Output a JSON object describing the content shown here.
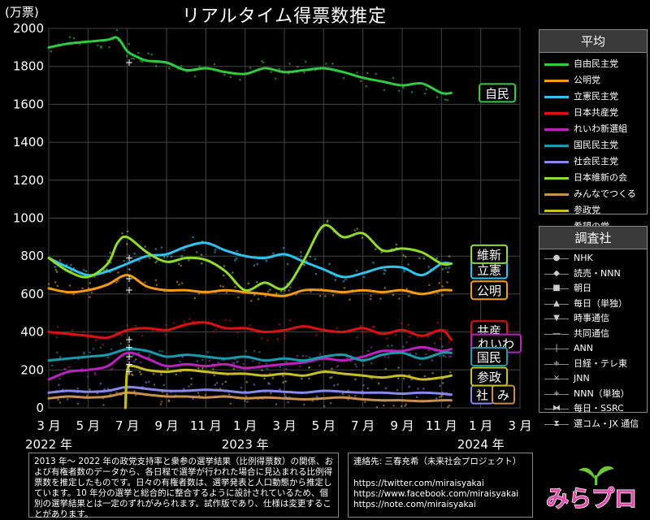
{
  "title": "リアルタイム得票数推定",
  "chart_data": {
    "type": "line",
    "title": "リアルタイム得票数推定",
    "ylabel": "(万票)",
    "ylim": [
      0,
      2000
    ],
    "yticks": [
      0,
      200,
      400,
      600,
      800,
      1000,
      1200,
      1400,
      1600,
      1800,
      2000
    ],
    "xlim": [
      0,
      24
    ],
    "x_unit": "months since 2022-03",
    "xticks": [
      {
        "x": 0,
        "label": "3 月"
      },
      {
        "x": 2,
        "label": "5 月"
      },
      {
        "x": 4,
        "label": "7 月"
      },
      {
        "x": 6,
        "label": "9 月"
      },
      {
        "x": 8,
        "label": "11 月"
      },
      {
        "x": 10,
        "label": "1 月"
      },
      {
        "x": 12,
        "label": "3 月"
      },
      {
        "x": 14,
        "label": "5 月"
      },
      {
        "x": 16,
        "label": "7 月"
      },
      {
        "x": 18,
        "label": "9 月"
      },
      {
        "x": 20,
        "label": "11 月"
      },
      {
        "x": 22,
        "label": "1 月"
      },
      {
        "x": 24,
        "label": "3 月"
      }
    ],
    "year_labels": [
      {
        "x": 0,
        "label": "2022 年"
      },
      {
        "x": 10,
        "label": "2023 年"
      },
      {
        "x": 22,
        "label": "2024 年"
      }
    ],
    "grid": true,
    "legend_position": "right",
    "series": [
      {
        "name": "自由民主党",
        "label": "自民",
        "color": "#2ecc40",
        "x": [
          0,
          1,
          2,
          3,
          3.5,
          4,
          4.5,
          5,
          6,
          7,
          8,
          9,
          10,
          11,
          12,
          13,
          14,
          15,
          16,
          17,
          18,
          19,
          20,
          20.5
        ],
        "values": [
          1900,
          1920,
          1930,
          1940,
          1950,
          1880,
          1850,
          1830,
          1820,
          1780,
          1790,
          1770,
          1760,
          1790,
          1770,
          1780,
          1790,
          1770,
          1740,
          1720,
          1700,
          1710,
          1660,
          1660
        ]
      },
      {
        "name": "公明党",
        "label": "公明",
        "color": "#f39c12",
        "x": [
          0,
          1,
          2,
          3,
          4,
          5,
          6,
          7,
          8,
          9,
          10,
          11,
          12,
          13,
          14,
          15,
          16,
          17,
          18,
          19,
          20,
          20.5
        ],
        "values": [
          630,
          610,
          620,
          650,
          700,
          640,
          620,
          620,
          610,
          620,
          610,
          600,
          590,
          620,
          620,
          610,
          620,
          610,
          620,
          600,
          620,
          620
        ]
      },
      {
        "name": "立憲民主党",
        "label": "立憲",
        "color": "#2ec4f0",
        "x": [
          0,
          1,
          2,
          3,
          4,
          5,
          6,
          7,
          8,
          9,
          10,
          11,
          12,
          13,
          14,
          15,
          16,
          17,
          18,
          19,
          20,
          20.5
        ],
        "values": [
          790,
          740,
          700,
          720,
          760,
          800,
          810,
          850,
          870,
          830,
          800,
          790,
          810,
          770,
          730,
          690,
          710,
          740,
          740,
          700,
          760,
          760
        ]
      },
      {
        "name": "日本共産党",
        "label": "共産",
        "color": "#e01010",
        "x": [
          0,
          1,
          2,
          3,
          4,
          5,
          6,
          7,
          8,
          9,
          10,
          11,
          12,
          13,
          14,
          15,
          16,
          17,
          18,
          19,
          20,
          20.5
        ],
        "values": [
          400,
          390,
          380,
          370,
          410,
          420,
          410,
          440,
          450,
          420,
          420,
          400,
          410,
          430,
          410,
          400,
          420,
          390,
          410,
          380,
          410,
          360
        ]
      },
      {
        "name": "れいわ新選組",
        "label": "れいわ",
        "color": "#c020c0",
        "x": [
          0,
          1,
          2,
          3,
          4,
          5,
          6,
          7,
          8,
          9,
          10,
          11,
          12,
          13,
          14,
          15,
          16,
          17,
          18,
          19,
          20,
          20.5
        ],
        "values": [
          150,
          190,
          200,
          220,
          290,
          260,
          220,
          230,
          220,
          230,
          210,
          220,
          230,
          240,
          260,
          250,
          270,
          300,
          300,
          320,
          300,
          310
        ]
      },
      {
        "name": "国民民主党",
        "label": "国民",
        "color": "#1a9aaa",
        "x": [
          0,
          1,
          2,
          3,
          4,
          5,
          6,
          7,
          8,
          9,
          10,
          11,
          12,
          13,
          14,
          15,
          16,
          17,
          18,
          19,
          20,
          20.5
        ],
        "values": [
          250,
          260,
          270,
          280,
          310,
          300,
          270,
          280,
          270,
          260,
          270,
          250,
          260,
          250,
          270,
          280,
          250,
          280,
          290,
          260,
          290,
          290
        ]
      },
      {
        "name": "社会民主党",
        "label": "社",
        "color": "#8888ee",
        "x": [
          0,
          1,
          2,
          3,
          4,
          5,
          6,
          7,
          8,
          9,
          10,
          11,
          12,
          13,
          14,
          15,
          16,
          17,
          18,
          19,
          20,
          20.5
        ],
        "values": [
          80,
          90,
          85,
          90,
          110,
          100,
          90,
          90,
          95,
          90,
          80,
          90,
          85,
          80,
          90,
          85,
          80,
          80,
          75,
          80,
          75,
          70
        ]
      },
      {
        "name": "日本維新の会",
        "label": "維新",
        "color": "#8fdc2e",
        "x": [
          0,
          1,
          2,
          3,
          3.5,
          4,
          5,
          6,
          7,
          8,
          9,
          10,
          11,
          12,
          13,
          14,
          15,
          16,
          17,
          18,
          19,
          20,
          20.5
        ],
        "values": [
          790,
          720,
          690,
          760,
          870,
          900,
          820,
          770,
          790,
          780,
          720,
          620,
          660,
          630,
          780,
          960,
          900,
          920,
          830,
          840,
          820,
          760,
          760
        ]
      },
      {
        "name": "みんなでつくる",
        "label": "み",
        "color": "#c8904a",
        "x": [
          0,
          1,
          2,
          3,
          4,
          5,
          6,
          7,
          8,
          9,
          10,
          11,
          12,
          13,
          14,
          15,
          16,
          17,
          18,
          19,
          20,
          20.5
        ],
        "values": [
          50,
          60,
          55,
          60,
          80,
          70,
          60,
          60,
          55,
          60,
          50,
          55,
          50,
          45,
          50,
          55,
          45,
          40,
          40,
          35,
          40,
          40
        ]
      },
      {
        "name": "参政党",
        "label": "参政",
        "color": "#c8c020",
        "x": [
          3.9,
          4.0,
          4.3,
          5,
          6,
          7,
          8,
          9,
          10,
          11,
          12,
          13,
          14,
          15,
          16,
          17,
          18,
          19,
          20,
          20.5
        ],
        "values": [
          0,
          200,
          220,
          200,
          190,
          200,
          190,
          180,
          180,
          170,
          180,
          170,
          190,
          180,
          170,
          160,
          170,
          150,
          160,
          170
        ]
      },
      {
        "name": "希望の党",
        "color": "#6a8aaa",
        "dashed": true,
        "x": [],
        "values": []
      }
    ]
  },
  "legend_avg": {
    "title": "平均",
    "items": [
      {
        "label": "自由民主党",
        "color": "#2ecc40"
      },
      {
        "label": "公明党",
        "color": "#f39c12"
      },
      {
        "label": "立憲民主党",
        "color": "#2ec4f0"
      },
      {
        "label": "日本共産党",
        "color": "#e01010"
      },
      {
        "label": "れいわ新選組",
        "color": "#c020c0"
      },
      {
        "label": "国民民主党",
        "color": "#1a9aaa"
      },
      {
        "label": "社会民主党",
        "color": "#8888ee"
      },
      {
        "label": "日本維新の会",
        "color": "#8fdc2e"
      },
      {
        "label": "みんなでつくる",
        "color": "#c8904a"
      },
      {
        "label": "参政党",
        "color": "#c8c020"
      },
      {
        "label": "希望の党",
        "color": "#6a8aaa"
      }
    ]
  },
  "legend_pollster": {
    "title": "調査社",
    "items": [
      {
        "label": "NHK",
        "marker": "●"
      },
      {
        "label": "読売・NNN",
        "marker": "◆"
      },
      {
        "label": "朝日",
        "marker": "■"
      },
      {
        "label": "毎日（単独）",
        "marker": "▲"
      },
      {
        "label": "時事通信",
        "marker": "▼"
      },
      {
        "label": "共同通信",
        "marker": "—"
      },
      {
        "label": "ANN",
        "marker": "|"
      },
      {
        "label": "日経・テレ東",
        "marker": "+"
      },
      {
        "label": "JNN",
        "marker": "×"
      },
      {
        "label": "NNN（単独）",
        "marker": "+"
      },
      {
        "label": "毎日・SSRC",
        "marker": "⧓"
      },
      {
        "label": "選コム・JX 通信",
        "marker": "⧗"
      }
    ]
  },
  "note": "2013 年～ 2022 年の政党支持率と衆参の選挙結果（比例得票数）の関係、および有権者数のデータから、各日程で選挙が行われた場合に見込まれる比例得票数を推定したものです。日々の有権者数は、選挙発表と人口動態から推定しています。10 年分の選挙と総合的に整合するように設計されているため、個別の選挙結果とは一定のずれがみられます。試作版であり、仕様は変更することがあります。",
  "contact": {
    "heading": "連絡先: 三春充希（未来社会プロジェクト）",
    "links": [
      "https://twitter.com/miraisyakai",
      "https://www.facebook.com/miraisyakai",
      "https://note.com/miraisyakai"
    ]
  },
  "logo_text": "みらプロ"
}
